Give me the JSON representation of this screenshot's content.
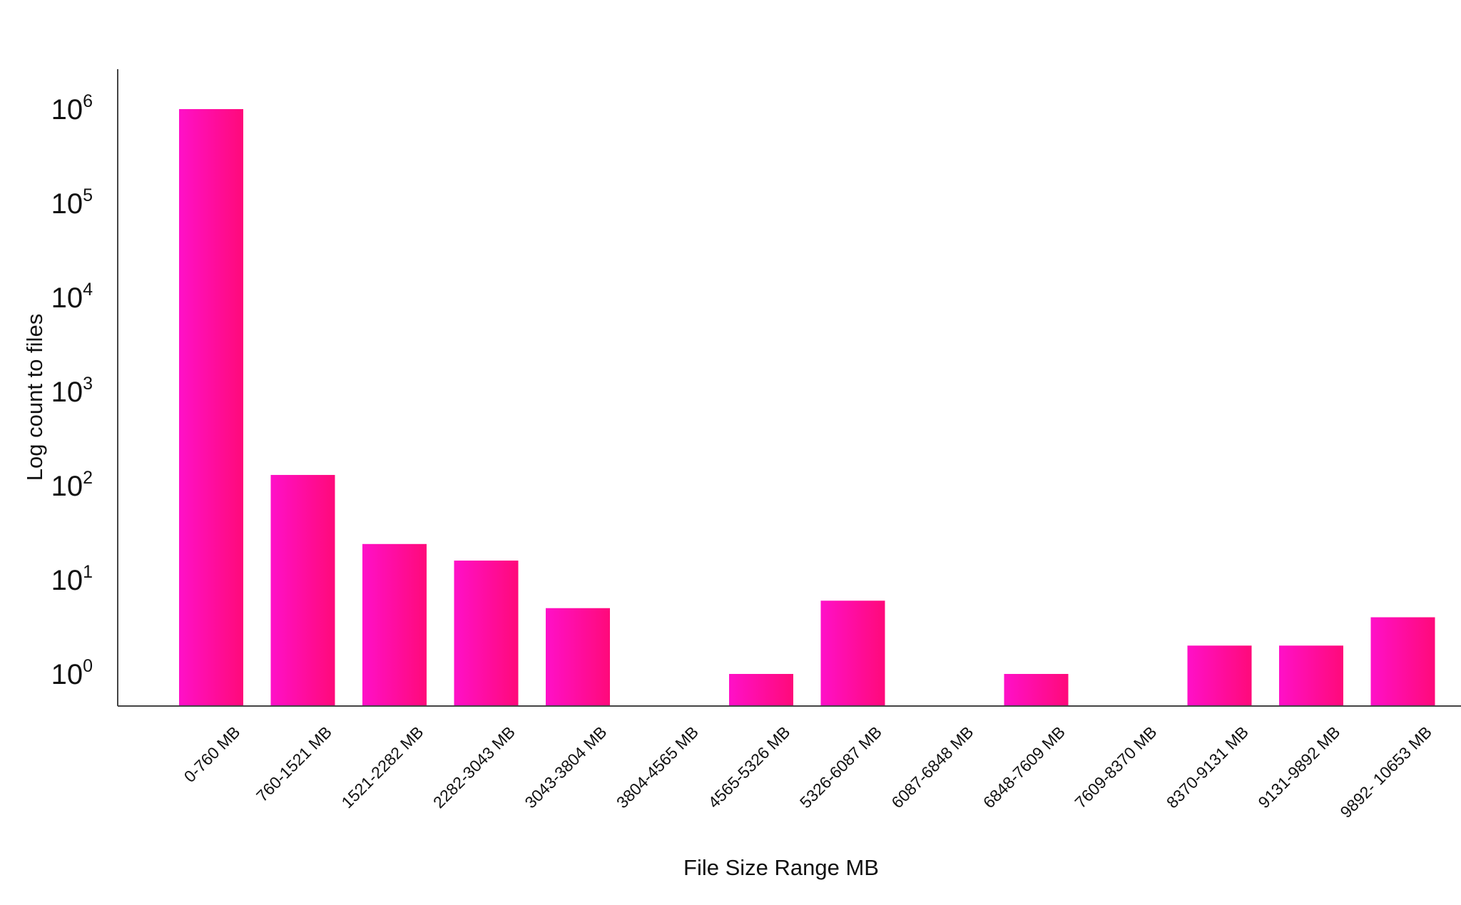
{
  "chart_data": {
    "type": "bar",
    "title": "",
    "xlabel": "File Size Range MB",
    "ylabel": "Log count to files",
    "yscale": "log",
    "ylim": [
      0.3,
      1000000
    ],
    "grid": false,
    "legend": "none",
    "colors": {
      "bar_light": "#ff10c8",
      "bar_dark": "#ff0a7a",
      "axis": "#444444",
      "text": "#111111"
    },
    "yticks": [
      {
        "value": 1,
        "base": "10",
        "exp": "0"
      },
      {
        "value": 10,
        "base": "10",
        "exp": "1"
      },
      {
        "value": 100,
        "base": "10",
        "exp": "2"
      },
      {
        "value": 1000,
        "base": "10",
        "exp": "3"
      },
      {
        "value": 10000,
        "base": "10",
        "exp": "4"
      },
      {
        "value": 100000,
        "base": "10",
        "exp": "5"
      },
      {
        "value": 1000000,
        "base": "10",
        "exp": "6"
      }
    ],
    "categories": [
      "0-760 MB",
      "760-1521 MB",
      "1521-2282 MB",
      "2282-3043 MB",
      "3043-3804 MB",
      "3804-4565 MB",
      "4565-5326 MB",
      "5326-6087 MB",
      "6087-6848 MB",
      "6848-7609 MB",
      "7609-8370 MB",
      "8370-9131 MB",
      "9131-9892 MB",
      "9892- 10653 MB"
    ],
    "values": [
      1000000,
      130,
      24,
      16,
      5,
      0,
      1,
      6,
      0,
      1,
      0,
      2,
      2,
      4
    ]
  }
}
